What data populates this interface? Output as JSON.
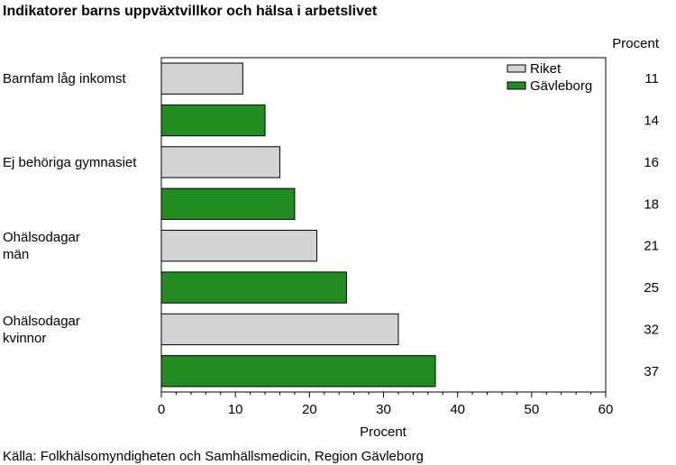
{
  "chart_data": {
    "type": "bar",
    "orientation": "horizontal",
    "title": "Indikatorer barns uppväxtvillkor och hälsa i arbetslivet",
    "xlabel": "Procent",
    "value_column_header": "Procent",
    "xlim": [
      0,
      60
    ],
    "x_ticks": [
      "0",
      "10",
      "20",
      "30",
      "40",
      "50",
      "60"
    ],
    "grid": false,
    "legend_position": "top-right",
    "categories": [
      [
        "Barnfam låg inkomst"
      ],
      [
        "Ej behöriga gymnasiet"
      ],
      [
        "Ohälsodagar",
        "män"
      ],
      [
        "Ohälsodagar",
        "kvinnor"
      ]
    ],
    "series": [
      {
        "name": "Riket",
        "color": "#d3d3d3",
        "values": [
          11,
          16,
          21,
          32
        ]
      },
      {
        "name": "Gävleborg",
        "color": "#228b22",
        "values": [
          14,
          18,
          25,
          37
        ]
      }
    ],
    "source": "Källa: Folkhälsomyndigheten och Samhällsmedicin, Region Gävleborg"
  }
}
